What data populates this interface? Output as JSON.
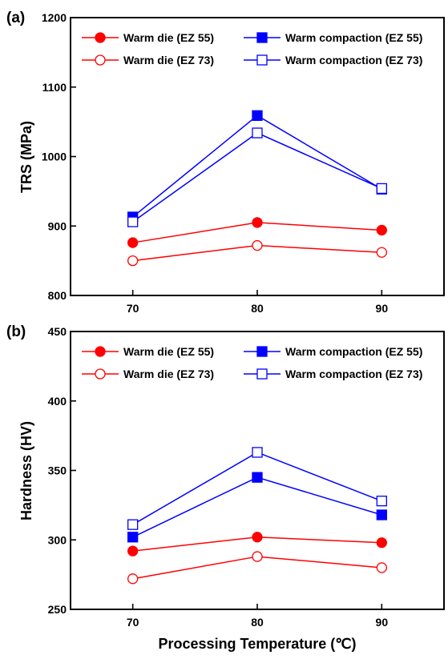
{
  "chart_data": [
    {
      "type": "line",
      "panel_label": "(a)",
      "xlabel": "",
      "ylabel": "TRS (MPa)",
      "x": [
        70,
        80,
        90
      ],
      "xticks": [
        70,
        80,
        90
      ],
      "xlim": [
        65,
        95
      ],
      "ylim": [
        800,
        1200
      ],
      "yticks": [
        800,
        900,
        1000,
        1100,
        1200
      ],
      "grid": false,
      "legend": "top",
      "series": [
        {
          "name": "Warm die (EZ 55)",
          "values": [
            876,
            905,
            894
          ],
          "color": "#ff0000",
          "marker": "circle",
          "filled": true
        },
        {
          "name": "Warm compaction (EZ 55)",
          "values": [
            913,
            1059,
            953
          ],
          "color": "#0000ff",
          "marker": "square",
          "filled": true
        },
        {
          "name": "Warm die (EZ 73)",
          "values": [
            850,
            872,
            862
          ],
          "color": "#ff0000",
          "marker": "circle",
          "filled": false
        },
        {
          "name": "Warm compaction (EZ 73)",
          "values": [
            906,
            1034,
            954
          ],
          "color": "#0000ff",
          "marker": "square",
          "filled": false
        }
      ]
    },
    {
      "type": "line",
      "panel_label": "(b)",
      "xlabel": "Processing Temperature (℃)",
      "ylabel": "Hardness (HV)",
      "x": [
        70,
        80,
        90
      ],
      "xticks": [
        70,
        80,
        90
      ],
      "xlim": [
        65,
        95
      ],
      "ylim": [
        250,
        450
      ],
      "yticks": [
        250,
        300,
        350,
        400,
        450
      ],
      "grid": false,
      "legend": "top",
      "series": [
        {
          "name": "Warm die (EZ 55)",
          "values": [
            292,
            302,
            298
          ],
          "color": "#ff0000",
          "marker": "circle",
          "filled": true
        },
        {
          "name": "Warm compaction (EZ 55)",
          "values": [
            302,
            345,
            318
          ],
          "color": "#0000ff",
          "marker": "square",
          "filled": true
        },
        {
          "name": "Warm die (EZ 73)",
          "values": [
            272,
            288,
            280
          ],
          "color": "#ff0000",
          "marker": "circle",
          "filled": false
        },
        {
          "name": "Warm compaction (EZ 73)",
          "values": [
            311,
            363,
            328
          ],
          "color": "#0000ff",
          "marker": "square",
          "filled": false
        }
      ]
    }
  ]
}
